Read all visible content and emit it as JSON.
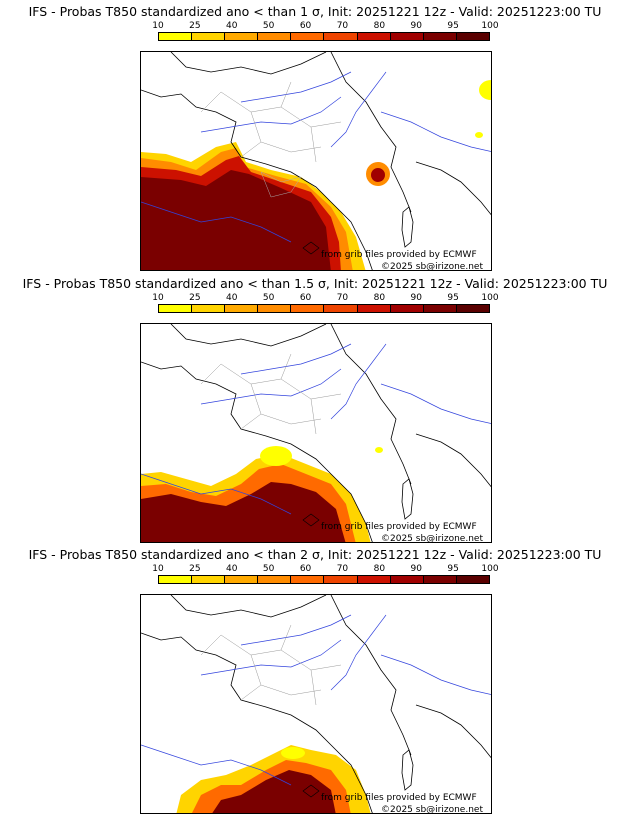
{
  "panels": [
    {
      "title": "IFS - Probas T850  standardized ano < than 1 σ, Init: 20251221 12z - Valid: 20251223:00 TU",
      "level_percent": 1.0
    },
    {
      "title": "IFS - Probas T850  standardized ano < than 1.5 σ, Init: 20251221 12z - Valid: 20251223:00 TU",
      "level_percent": 1.5
    },
    {
      "title": "IFS - Probas T850  standardized ano < than 2 σ, Init: 20251221 12z - Valid: 20251223:00 TU",
      "level_percent": 2.0
    }
  ],
  "legend": {
    "labels": [
      "10",
      "25",
      "40",
      "50",
      "60",
      "70",
      "80",
      "90",
      "95",
      "100"
    ],
    "colors": [
      "#ffff00",
      "#ffd400",
      "#ffaa00",
      "#ff8c00",
      "#ff6a00",
      "#ee4400",
      "#cc1100",
      "#a00000",
      "#7a0000",
      "#5a0000"
    ]
  },
  "credits": {
    "grib": "from grib files provided by ECMWF",
    "copyright": "©2025 sb@irizone.net"
  }
}
